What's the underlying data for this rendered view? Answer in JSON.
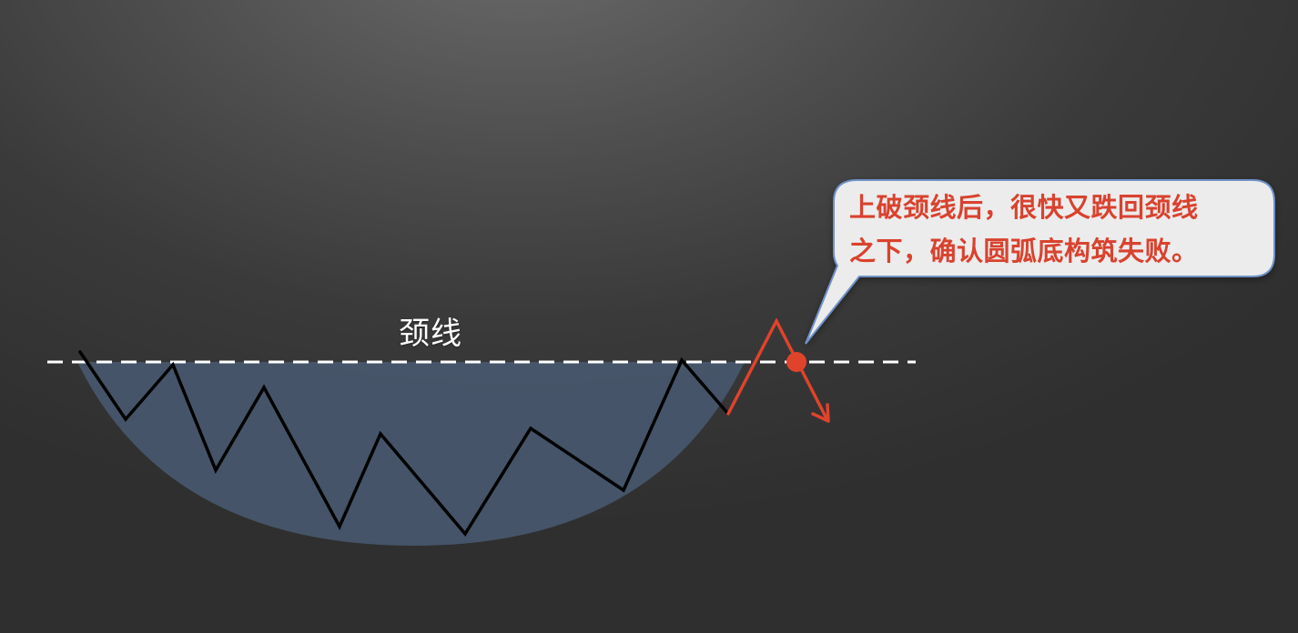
{
  "labels": {
    "neckline": "颈线",
    "callout_line1": "上破颈线后，很快又跌回颈线",
    "callout_line2": "之下，确认圆弧底构筑失败。"
  },
  "colors": {
    "background": "#3a3a3a",
    "bowl_fill": "#47566c",
    "price_line": "#000000",
    "breakout_line": "#e0432c",
    "neckline": "#ffffff",
    "callout_fill": "#ececec",
    "callout_border": "#6f92c8",
    "callout_text": "#d9422e"
  }
}
